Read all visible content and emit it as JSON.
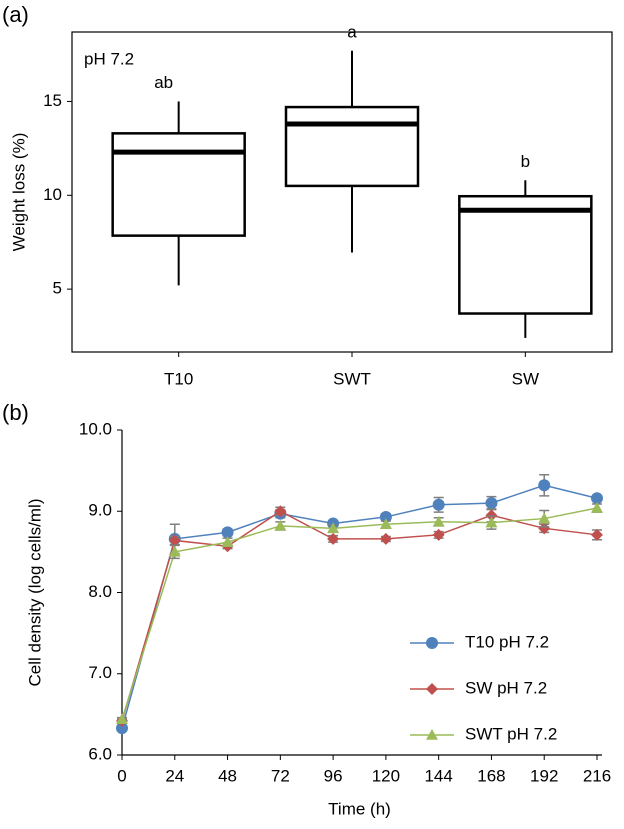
{
  "chart_data": [
    {
      "type": "box",
      "panel_label": "(a)",
      "annotation": "pH 7.2",
      "y_label": "Weight loss (%)",
      "categories": [
        "T10",
        "SWT",
        "SW"
      ],
      "min": [
        5.2,
        6.95,
        2.4
      ],
      "q1": [
        7.85,
        10.5,
        3.7
      ],
      "median": [
        12.3,
        13.8,
        9.2
      ],
      "q3": [
        13.3,
        14.7,
        9.95
      ],
      "max": [
        15.0,
        17.7,
        10.8
      ],
      "letters": [
        "ab",
        "a",
        "b"
      ],
      "color": "#000000",
      "ylim": [
        1.65,
        18.7
      ],
      "yticks": [
        5,
        10,
        15
      ]
    },
    {
      "type": "line",
      "panel_label": "(b)",
      "x_label": "Time (h)",
      "y_label": "Cell density (log cells/ml)",
      "x": [
        0,
        24,
        48,
        72,
        96,
        120,
        144,
        168,
        192,
        216
      ],
      "series": [
        {
          "name": "T10 pH 7.2",
          "color": "#4f81bd",
          "marker": "circle",
          "values": [
            6.33,
            8.66,
            8.74,
            8.97,
            8.85,
            8.93,
            9.08,
            9.1,
            9.32,
            9.16
          ],
          "errors": [
            0.02,
            0.18,
            0.04,
            0.05,
            0.03,
            0.04,
            0.09,
            0.08,
            0.13,
            0.03
          ]
        },
        {
          "name": "SW pH 7.2",
          "color": "#c0504d",
          "marker": "diamond",
          "values": [
            6.42,
            8.64,
            8.57,
            9.0,
            8.66,
            8.66,
            8.71,
            8.95,
            8.79,
            8.71
          ],
          "errors": [
            0.02,
            0.05,
            0.03,
            0.05,
            0.04,
            0.03,
            0.04,
            0.08,
            0.05,
            0.06
          ]
        },
        {
          "name": "SWT pH 7.2",
          "color": "#9bbb59",
          "marker": "triangle",
          "values": [
            6.44,
            8.5,
            8.62,
            8.82,
            8.79,
            8.84,
            8.87,
            8.86,
            8.91,
            9.04
          ],
          "errors": [
            0.02,
            0.08,
            0.05,
            0.05,
            0.04,
            0.04,
            0.05,
            0.08,
            0.1,
            0.05
          ]
        }
      ],
      "error_color": "#7f7f7f",
      "xlim": [
        0,
        216
      ],
      "xticks": [
        0,
        24,
        48,
        72,
        96,
        120,
        144,
        168,
        192,
        216
      ],
      "ylim": [
        6,
        10
      ],
      "yticks": [
        {
          "value": 6,
          "label": "6.0"
        },
        {
          "value": 7,
          "label": "7.0"
        },
        {
          "value": 8,
          "label": "8.0"
        },
        {
          "value": 9,
          "label": "9.0"
        },
        {
          "value": 10,
          "label": "10.0"
        }
      ],
      "legend": "lower-right"
    }
  ]
}
